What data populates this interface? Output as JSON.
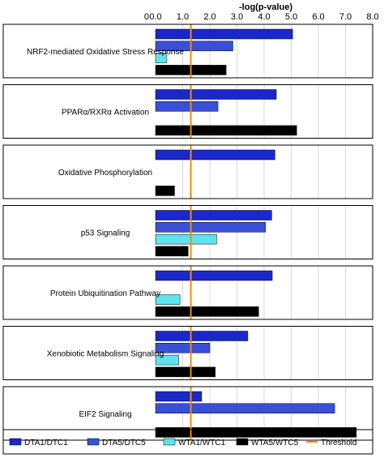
{
  "chart_data": {
    "type": "bar",
    "orientation": "horizontal",
    "x_axis": {
      "label": "-log(p-value)",
      "position": "top",
      "range": [
        0,
        8
      ],
      "ticks": [
        "0",
        "0.0",
        "1.0",
        "2.0",
        "3.0",
        "4.0",
        "5.0",
        "6.0",
        "7.0",
        "8.0"
      ]
    },
    "grid": true,
    "categories": [
      "NRF2-mediated Oxidative Stress Response",
      "PPARα/RXRα Activation",
      "Oxidative Phosphorylation",
      "p53 Signaling",
      "Protein Ubiquitination Pathway",
      "Xenobiotic Metabolism Signaling",
      "EIF2 Signaling"
    ],
    "series": [
      {
        "name": "DTA1/DTC1",
        "color": "#1a27c9",
        "values": [
          5.05,
          4.45,
          4.4,
          4.28,
          4.3,
          3.4,
          1.7
        ]
      },
      {
        "name": "DTA5/DTC5",
        "color": "#3a4fd8",
        "values": [
          2.85,
          2.3,
          0,
          4.05,
          0,
          2.0,
          6.6
        ]
      },
      {
        "name": "WTA1/WTC1",
        "color": "#5ce3ee",
        "values": [
          0.4,
          0,
          0,
          2.25,
          0.9,
          0.85,
          0
        ]
      },
      {
        "name": "WTA5/WTC5",
        "color": "#000000",
        "values": [
          2.6,
          5.2,
          0.7,
          1.2,
          3.8,
          2.2,
          7.4
        ]
      }
    ],
    "threshold": {
      "name": "Threshold",
      "value": 1.3,
      "color": "#f08c00"
    },
    "legend": {
      "position": "bottom"
    }
  }
}
